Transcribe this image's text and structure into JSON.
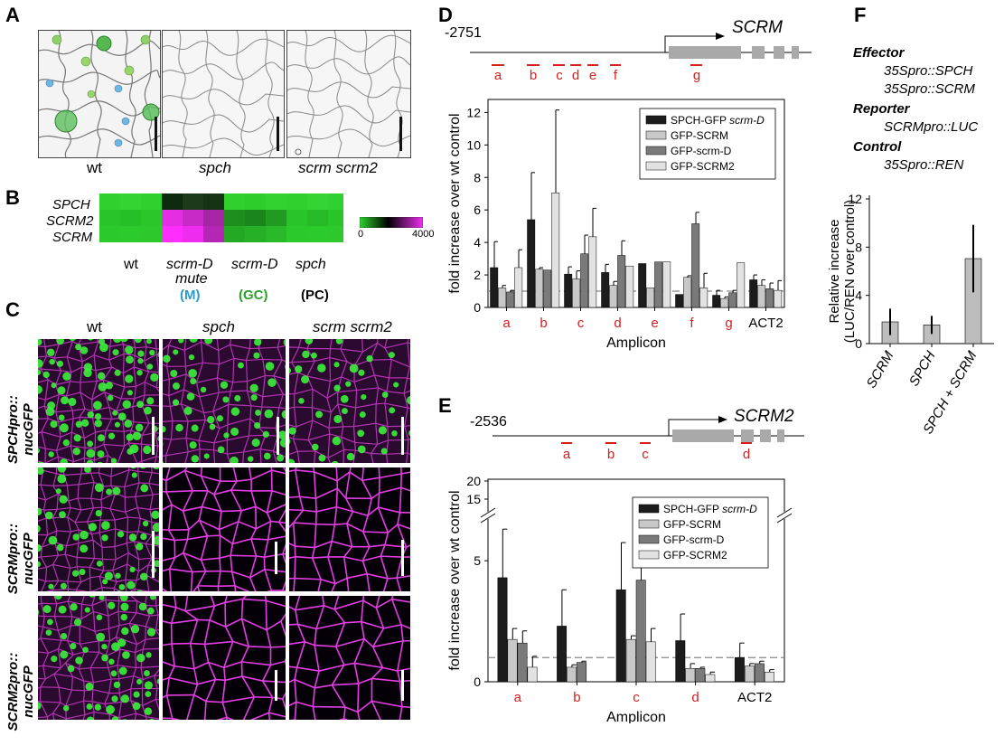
{
  "panels": {
    "A": "A",
    "B": "B",
    "C": "C",
    "D": "D",
    "E": "E",
    "F": "F"
  },
  "colors": {
    "green": "#1aa31a",
    "magenta": "#e61ee6",
    "red": "#d62020",
    "bar_black": "#1c1c1c",
    "bar_light": "#c8c8c8",
    "bar_mid": "#7a7a7a",
    "bar_pale": "#e2e2e2"
  },
  "panelA": {
    "labels": [
      "wt",
      "spch",
      "scrm scrm2"
    ]
  },
  "panelB": {
    "rows": [
      "SPCH",
      "SCRM2",
      "SCRM"
    ],
    "cols": [
      "wt",
      "scrm-D mute",
      "scrm-D",
      "spch"
    ],
    "col_line1": [
      "wt",
      "scrm-D",
      "scrm-D",
      "spch"
    ],
    "col_line2": [
      "",
      "mute",
      "",
      ""
    ],
    "groups": [
      "(M)",
      "(GC)",
      "(PC)"
    ],
    "scale_min": "0",
    "scale_max": "4000"
  },
  "panelC": {
    "cols": [
      "wt",
      "spch",
      "scrm scrm2"
    ],
    "rows_line1": [
      "SPCHpro::",
      "SCRMpro::",
      "SCRM2pro::"
    ],
    "rows_line2": [
      "nucGFP",
      "nucGFP",
      "nucGFP"
    ]
  },
  "panelD": {
    "position": "-2751",
    "gene": "SCRM",
    "amplicons": [
      "a",
      "b",
      "c",
      "d",
      "e",
      "f",
      "g"
    ]
  },
  "panelE": {
    "position": "-2536",
    "gene": "SCRM2",
    "amplicons": [
      "a",
      "b",
      "c",
      "d"
    ]
  },
  "panelF": {
    "effector_label": "Effector",
    "effector_1": "35Spro::SPCH",
    "effector_2": "35Spro::SCRM",
    "reporter_label": "Reporter",
    "reporter_1": "SCRMpro::LUC",
    "control_label": "Control",
    "control_1": "35Spro::REN"
  },
  "chart_data": [
    {
      "type": "bar",
      "panel": "D",
      "categories": [
        "a",
        "b",
        "c",
        "d",
        "e",
        "f",
        "g",
        "ACT2"
      ],
      "xlabel": "Amplicon",
      "ylabel": "fold increase over wt control",
      "ylim": [
        0,
        12.8
      ],
      "yticks": [
        "0",
        "2",
        "4",
        "6",
        "8",
        "10",
        "12"
      ],
      "reference_line": 1,
      "series": [
        {
          "name": "SPCH-GFP scrm-D",
          "color": "#1c1c1c",
          "values": [
            2.45,
            5.4,
            2.05,
            2.15,
            2.7,
            0.8,
            0.75,
            1.7
          ],
          "errors": [
            1.6,
            2.9,
            0.45,
            0.5,
            0,
            0,
            0.3,
            0.3
          ]
        },
        {
          "name": "GFP-SCRM",
          "color": "#c8c8c8",
          "values": [
            1.2,
            2.35,
            1.75,
            1.35,
            1.2,
            1.85,
            0.55,
            1.35
          ],
          "errors": [
            0.15,
            0.1,
            0.5,
            0.25,
            0,
            0.1,
            0.1,
            0.35
          ]
        },
        {
          "name": "GFP-scrm-D",
          "color": "#7a7a7a",
          "values": [
            0.95,
            2.3,
            3.3,
            3.2,
            2.8,
            5.15,
            0.9,
            1.15
          ],
          "errors": [
            0.1,
            0,
            1.15,
            0.9,
            0,
            0.7,
            0.15,
            0.35
          ]
        },
        {
          "name": "GFP-SCRM2",
          "color": "#e2e2e2",
          "values": [
            2.45,
            7.05,
            4.35,
            2.55,
            2.8,
            1.2,
            2.75,
            1.05
          ],
          "errors": [
            1.1,
            5.1,
            1.75,
            0,
            0,
            0.9,
            0,
            0.6
          ]
        }
      ]
    },
    {
      "type": "bar",
      "panel": "E",
      "categories": [
        "a",
        "b",
        "c",
        "d",
        "ACT2"
      ],
      "xlabel": "Amplicon",
      "ylabel": "fold increase over wt control",
      "ylim": [
        0,
        20
      ],
      "yticks": [
        "0",
        "5",
        "10",
        "15",
        "20"
      ],
      "axis_break": true,
      "reference_line": 1,
      "series": [
        {
          "name": "SPCH-GFP scrm-D",
          "color": "#1c1c1c",
          "values": [
            4.3,
            2.3,
            3.8,
            1.7,
            1.0
          ],
          "errors": [
            2.4,
            1.5,
            1.95,
            1.1,
            0.6
          ]
        },
        {
          "name": "GFP-SCRM",
          "color": "#c8c8c8",
          "values": [
            1.75,
            0.6,
            1.75,
            0.55,
            0.65
          ],
          "errors": [
            0.45,
            0.1,
            0.15,
            0.2,
            0.1
          ]
        },
        {
          "name": "GFP-scrm-D",
          "color": "#7a7a7a",
          "values": [
            1.6,
            0.8,
            4.2,
            0.55,
            0.75
          ],
          "errors": [
            0.5,
            0.05,
            1.1,
            0.05,
            0.1
          ]
        },
        {
          "name": "GFP-SCRM2",
          "color": "#e2e2e2",
          "values": [
            0.6,
            0.0,
            1.65,
            0.3,
            0.4
          ],
          "errors": [
            0.45,
            0,
            0.55,
            0.1,
            0.1
          ]
        }
      ]
    },
    {
      "type": "bar",
      "panel": "F",
      "categories": [
        "SCRM",
        "SPCH",
        "SPCH + SCRM"
      ],
      "ylabel_line1": "Relative increase",
      "ylabel_line2": "(LUC/REN over control)",
      "ylim": [
        0,
        12
      ],
      "yticks": [
        "0",
        "4",
        "8",
        "12"
      ],
      "values": [
        1.8,
        1.55,
        7.05
      ],
      "errors": [
        1.1,
        0.75,
        2.8
      ],
      "color": "#bdbdbd"
    }
  ]
}
